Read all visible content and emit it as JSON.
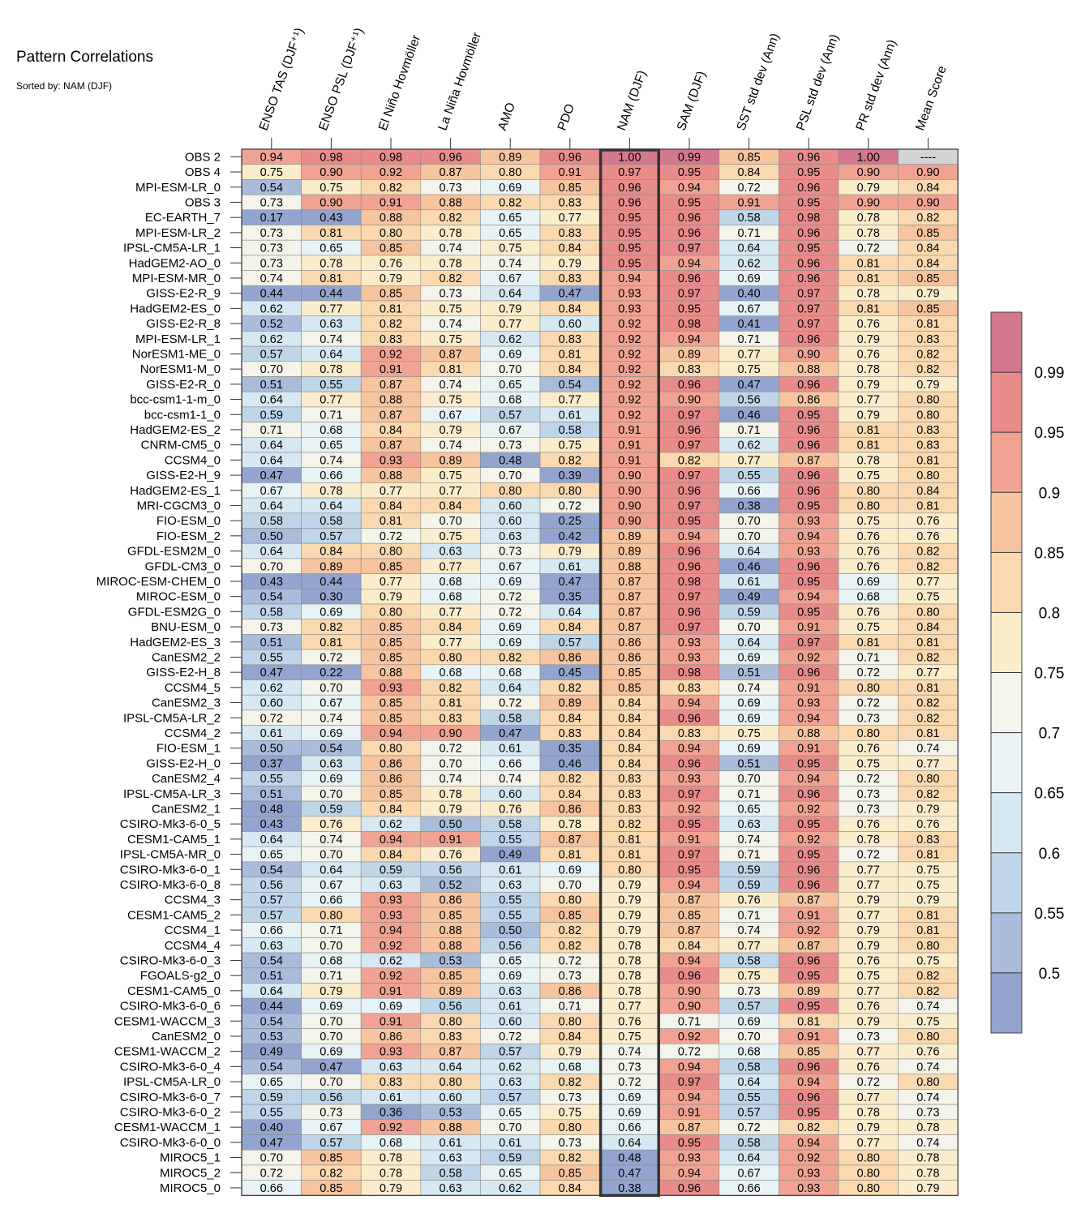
{
  "chart_data": {
    "type": "heatmap",
    "title": "Pattern Correlations",
    "subtitle": "Sorted by: NAM (DJF)",
    "highlighted_column": "NAM (DJF)",
    "columns": [
      "ENSO TAS (DJF⁺¹)",
      "ENSO PSL (DJF⁺¹)",
      "El Niño Hovmöller",
      "La Niña Hovmöller",
      "AMO",
      "PDO",
      "NAM (DJF)",
      "SAM (DJF)",
      "SST std dev (Ann)",
      "PSL std dev (Ann)",
      "PR std dev (Ann)",
      "Mean Score"
    ],
    "rows": [
      "OBS 2",
      "OBS 4",
      "MPI-ESM-LR_0",
      "OBS 3",
      "EC-EARTH_7",
      "MPI-ESM-LR_2",
      "IPSL-CM5A-LR_1",
      "HadGEM2-AO_0",
      "MPI-ESM-MR_0",
      "GISS-E2-R_9",
      "HadGEM2-ES_0",
      "GISS-E2-R_8",
      "MPI-ESM-LR_1",
      "NorESM1-ME_0",
      "NorESM1-M_0",
      "GISS-E2-R_0",
      "bcc-csm1-1-m_0",
      "bcc-csm1-1_0",
      "HadGEM2-ES_2",
      "CNRM-CM5_0",
      "CCSM4_0",
      "GISS-E2-H_9",
      "HadGEM2-ES_1",
      "MRI-CGCM3_0",
      "FIO-ESM_0",
      "FIO-ESM_2",
      "GFDL-ESM2M_0",
      "GFDL-CM3_0",
      "MIROC-ESM-CHEM_0",
      "MIROC-ESM_0",
      "GFDL-ESM2G_0",
      "BNU-ESM_0",
      "HadGEM2-ES_3",
      "CanESM2_2",
      "GISS-E2-H_8",
      "CCSM4_5",
      "CanESM2_3",
      "IPSL-CM5A-LR_2",
      "CCSM4_2",
      "FIO-ESM_1",
      "GISS-E2-H_0",
      "CanESM2_4",
      "IPSL-CM5A-LR_3",
      "CanESM2_1",
      "CSIRO-Mk3-6-0_5",
      "CESM1-CAM5_1",
      "IPSL-CM5A-MR_0",
      "CSIRO-Mk3-6-0_1",
      "CSIRO-Mk3-6-0_8",
      "CCSM4_3",
      "CESM1-CAM5_2",
      "CCSM4_1",
      "CCSM4_4",
      "CSIRO-Mk3-6-0_3",
      "FGOALS-g2_0",
      "CESM1-CAM5_0",
      "CSIRO-Mk3-6-0_6",
      "CESM1-WACCM_3",
      "CanESM2_0",
      "CESM1-WACCM_2",
      "CSIRO-Mk3-6-0_4",
      "IPSL-CM5A-LR_0",
      "CSIRO-Mk3-6-0_7",
      "CSIRO-Mk3-6-0_2",
      "CESM1-WACCM_1",
      "CSIRO-Mk3-6-0_0",
      "MIROC5_1",
      "MIROC5_2",
      "MIROC5_0"
    ],
    "values": [
      [
        0.94,
        0.98,
        0.98,
        0.96,
        0.89,
        0.96,
        1.0,
        0.99,
        0.85,
        0.96,
        1.0,
        null
      ],
      [
        0.75,
        0.9,
        0.92,
        0.87,
        0.8,
        0.91,
        0.97,
        0.95,
        0.84,
        0.95,
        0.9,
        0.9
      ],
      [
        0.54,
        0.75,
        0.82,
        0.73,
        0.69,
        0.85,
        0.96,
        0.94,
        0.72,
        0.96,
        0.79,
        0.84
      ],
      [
        0.73,
        0.9,
        0.91,
        0.88,
        0.82,
        0.83,
        0.96,
        0.95,
        0.91,
        0.95,
        0.9,
        0.9
      ],
      [
        0.17,
        0.43,
        0.88,
        0.82,
        0.65,
        0.77,
        0.95,
        0.96,
        0.58,
        0.98,
        0.78,
        0.82
      ],
      [
        0.73,
        0.81,
        0.8,
        0.78,
        0.65,
        0.83,
        0.95,
        0.96,
        0.71,
        0.96,
        0.78,
        0.85
      ],
      [
        0.73,
        0.65,
        0.85,
        0.74,
        0.75,
        0.84,
        0.95,
        0.97,
        0.64,
        0.95,
        0.72,
        0.84
      ],
      [
        0.73,
        0.78,
        0.76,
        0.78,
        0.74,
        0.79,
        0.95,
        0.94,
        0.62,
        0.96,
        0.81,
        0.84
      ],
      [
        0.74,
        0.81,
        0.79,
        0.82,
        0.67,
        0.83,
        0.94,
        0.96,
        0.69,
        0.96,
        0.81,
        0.85
      ],
      [
        0.44,
        0.44,
        0.85,
        0.73,
        0.64,
        0.47,
        0.93,
        0.97,
        0.4,
        0.97,
        0.78,
        0.79
      ],
      [
        0.62,
        0.77,
        0.81,
        0.75,
        0.79,
        0.84,
        0.93,
        0.95,
        0.67,
        0.97,
        0.81,
        0.85
      ],
      [
        0.52,
        0.63,
        0.82,
        0.74,
        0.77,
        0.6,
        0.92,
        0.98,
        0.41,
        0.97,
        0.76,
        0.81
      ],
      [
        0.62,
        0.74,
        0.83,
        0.75,
        0.62,
        0.83,
        0.92,
        0.94,
        0.71,
        0.96,
        0.79,
        0.83
      ],
      [
        0.57,
        0.64,
        0.92,
        0.87,
        0.69,
        0.81,
        0.92,
        0.89,
        0.77,
        0.9,
        0.76,
        0.82
      ],
      [
        0.7,
        0.78,
        0.91,
        0.81,
        0.7,
        0.84,
        0.92,
        0.83,
        0.75,
        0.88,
        0.78,
        0.82
      ],
      [
        0.51,
        0.55,
        0.87,
        0.74,
        0.65,
        0.54,
        0.92,
        0.96,
        0.47,
        0.96,
        0.79,
        0.79
      ],
      [
        0.64,
        0.77,
        0.88,
        0.75,
        0.68,
        0.77,
        0.92,
        0.9,
        0.56,
        0.86,
        0.77,
        0.8
      ],
      [
        0.59,
        0.71,
        0.87,
        0.67,
        0.57,
        0.61,
        0.92,
        0.97,
        0.46,
        0.95,
        0.79,
        0.8
      ],
      [
        0.71,
        0.68,
        0.84,
        0.79,
        0.67,
        0.58,
        0.91,
        0.96,
        0.71,
        0.96,
        0.81,
        0.83
      ],
      [
        0.64,
        0.65,
        0.87,
        0.74,
        0.73,
        0.75,
        0.91,
        0.97,
        0.62,
        0.96,
        0.81,
        0.83
      ],
      [
        0.64,
        0.74,
        0.93,
        0.89,
        0.48,
        0.82,
        0.91,
        0.82,
        0.77,
        0.87,
        0.78,
        0.81
      ],
      [
        0.47,
        0.66,
        0.88,
        0.75,
        0.7,
        0.39,
        0.9,
        0.97,
        0.55,
        0.96,
        0.75,
        0.8
      ],
      [
        0.67,
        0.78,
        0.77,
        0.77,
        0.8,
        0.8,
        0.9,
        0.96,
        0.66,
        0.96,
        0.8,
        0.84
      ],
      [
        0.64,
        0.64,
        0.84,
        0.84,
        0.6,
        0.72,
        0.9,
        0.97,
        0.38,
        0.95,
        0.8,
        0.81
      ],
      [
        0.58,
        0.58,
        0.81,
        0.7,
        0.6,
        0.25,
        0.9,
        0.95,
        0.7,
        0.93,
        0.75,
        0.76
      ],
      [
        0.5,
        0.57,
        0.72,
        0.75,
        0.63,
        0.42,
        0.89,
        0.94,
        0.7,
        0.94,
        0.76,
        0.76
      ],
      [
        0.64,
        0.84,
        0.8,
        0.63,
        0.73,
        0.79,
        0.89,
        0.96,
        0.64,
        0.93,
        0.76,
        0.82
      ],
      [
        0.7,
        0.89,
        0.85,
        0.77,
        0.67,
        0.61,
        0.88,
        0.96,
        0.46,
        0.96,
        0.76,
        0.82
      ],
      [
        0.43,
        0.44,
        0.77,
        0.68,
        0.69,
        0.47,
        0.87,
        0.98,
        0.61,
        0.95,
        0.69,
        0.77
      ],
      [
        0.54,
        0.3,
        0.79,
        0.68,
        0.72,
        0.35,
        0.87,
        0.97,
        0.49,
        0.94,
        0.68,
        0.75
      ],
      [
        0.58,
        0.69,
        0.8,
        0.77,
        0.72,
        0.64,
        0.87,
        0.96,
        0.59,
        0.95,
        0.76,
        0.8
      ],
      [
        0.73,
        0.82,
        0.85,
        0.84,
        0.69,
        0.84,
        0.87,
        0.97,
        0.7,
        0.91,
        0.75,
        0.84
      ],
      [
        0.51,
        0.81,
        0.85,
        0.77,
        0.69,
        0.57,
        0.86,
        0.93,
        0.64,
        0.97,
        0.81,
        0.81
      ],
      [
        0.55,
        0.72,
        0.85,
        0.8,
        0.82,
        0.86,
        0.86,
        0.93,
        0.69,
        0.92,
        0.71,
        0.82
      ],
      [
        0.47,
        0.22,
        0.88,
        0.68,
        0.68,
        0.45,
        0.85,
        0.98,
        0.51,
        0.96,
        0.72,
        0.77
      ],
      [
        0.62,
        0.7,
        0.93,
        0.82,
        0.64,
        0.82,
        0.85,
        0.83,
        0.74,
        0.91,
        0.8,
        0.81
      ],
      [
        0.6,
        0.67,
        0.85,
        0.81,
        0.72,
        0.89,
        0.84,
        0.94,
        0.69,
        0.93,
        0.72,
        0.82
      ],
      [
        0.72,
        0.74,
        0.85,
        0.83,
        0.58,
        0.84,
        0.84,
        0.96,
        0.69,
        0.94,
        0.73,
        0.82
      ],
      [
        0.61,
        0.69,
        0.94,
        0.9,
        0.47,
        0.83,
        0.84,
        0.83,
        0.75,
        0.88,
        0.8,
        0.81
      ],
      [
        0.5,
        0.54,
        0.8,
        0.72,
        0.61,
        0.35,
        0.84,
        0.94,
        0.69,
        0.91,
        0.76,
        0.74
      ],
      [
        0.37,
        0.63,
        0.86,
        0.7,
        0.66,
        0.46,
        0.84,
        0.96,
        0.51,
        0.95,
        0.75,
        0.77
      ],
      [
        0.55,
        0.69,
        0.86,
        0.74,
        0.74,
        0.82,
        0.83,
        0.93,
        0.7,
        0.94,
        0.72,
        0.8
      ],
      [
        0.51,
        0.7,
        0.85,
        0.78,
        0.6,
        0.84,
        0.83,
        0.97,
        0.71,
        0.96,
        0.73,
        0.82
      ],
      [
        0.48,
        0.59,
        0.84,
        0.79,
        0.76,
        0.86,
        0.83,
        0.92,
        0.65,
        0.92,
        0.73,
        0.79
      ],
      [
        0.43,
        0.76,
        0.62,
        0.5,
        0.58,
        0.78,
        0.82,
        0.95,
        0.63,
        0.95,
        0.76,
        0.76
      ],
      [
        0.64,
        0.74,
        0.94,
        0.91,
        0.55,
        0.87,
        0.81,
        0.91,
        0.74,
        0.92,
        0.78,
        0.83
      ],
      [
        0.65,
        0.7,
        0.84,
        0.76,
        0.49,
        0.81,
        0.81,
        0.97,
        0.71,
        0.95,
        0.72,
        0.81
      ],
      [
        0.54,
        0.64,
        0.59,
        0.56,
        0.61,
        0.69,
        0.8,
        0.95,
        0.59,
        0.96,
        0.77,
        0.75
      ],
      [
        0.56,
        0.67,
        0.63,
        0.52,
        0.63,
        0.7,
        0.79,
        0.94,
        0.59,
        0.96,
        0.77,
        0.75
      ],
      [
        0.57,
        0.66,
        0.93,
        0.86,
        0.55,
        0.8,
        0.79,
        0.87,
        0.76,
        0.87,
        0.79,
        0.79
      ],
      [
        0.57,
        0.8,
        0.93,
        0.85,
        0.55,
        0.85,
        0.79,
        0.85,
        0.71,
        0.91,
        0.77,
        0.81
      ],
      [
        0.66,
        0.71,
        0.94,
        0.88,
        0.5,
        0.82,
        0.79,
        0.87,
        0.74,
        0.92,
        0.79,
        0.81
      ],
      [
        0.63,
        0.7,
        0.92,
        0.88,
        0.56,
        0.82,
        0.78,
        0.84,
        0.77,
        0.87,
        0.79,
        0.8
      ],
      [
        0.54,
        0.68,
        0.62,
        0.53,
        0.65,
        0.72,
        0.78,
        0.94,
        0.58,
        0.96,
        0.76,
        0.75
      ],
      [
        0.51,
        0.71,
        0.92,
        0.85,
        0.69,
        0.73,
        0.78,
        0.96,
        0.75,
        0.95,
        0.75,
        0.82
      ],
      [
        0.64,
        0.79,
        0.91,
        0.89,
        0.63,
        0.86,
        0.78,
        0.9,
        0.73,
        0.89,
        0.77,
        0.82
      ],
      [
        0.44,
        0.69,
        0.69,
        0.56,
        0.61,
        0.71,
        0.77,
        0.9,
        0.57,
        0.95,
        0.76,
        0.74
      ],
      [
        0.54,
        0.7,
        0.91,
        0.8,
        0.6,
        0.8,
        0.76,
        0.71,
        0.69,
        0.81,
        0.79,
        0.75
      ],
      [
        0.53,
        0.7,
        0.86,
        0.83,
        0.72,
        0.84,
        0.75,
        0.92,
        0.7,
        0.91,
        0.73,
        0.8
      ],
      [
        0.49,
        0.69,
        0.93,
        0.87,
        0.57,
        0.79,
        0.74,
        0.72,
        0.68,
        0.85,
        0.77,
        0.76
      ],
      [
        0.54,
        0.47,
        0.63,
        0.64,
        0.62,
        0.68,
        0.73,
        0.94,
        0.58,
        0.96,
        0.76,
        0.74
      ],
      [
        0.65,
        0.7,
        0.83,
        0.8,
        0.63,
        0.82,
        0.72,
        0.97,
        0.64,
        0.94,
        0.72,
        0.8
      ],
      [
        0.59,
        0.56,
        0.61,
        0.6,
        0.57,
        0.73,
        0.69,
        0.94,
        0.55,
        0.96,
        0.77,
        0.74
      ],
      [
        0.55,
        0.73,
        0.36,
        0.53,
        0.65,
        0.75,
        0.69,
        0.91,
        0.57,
        0.95,
        0.78,
        0.73
      ],
      [
        0.4,
        0.67,
        0.92,
        0.88,
        0.7,
        0.8,
        0.66,
        0.87,
        0.72,
        0.82,
        0.79,
        0.78
      ],
      [
        0.47,
        0.57,
        0.68,
        0.61,
        0.61,
        0.73,
        0.64,
        0.95,
        0.58,
        0.94,
        0.77,
        0.74
      ],
      [
        0.7,
        0.85,
        0.78,
        0.63,
        0.59,
        0.82,
        0.48,
        0.93,
        0.64,
        0.92,
        0.8,
        0.78
      ],
      [
        0.72,
        0.82,
        0.78,
        0.58,
        0.65,
        0.85,
        0.47,
        0.94,
        0.67,
        0.93,
        0.8,
        0.78
      ],
      [
        0.66,
        0.85,
        0.79,
        0.63,
        0.62,
        0.84,
        0.38,
        0.96,
        0.66,
        0.93,
        0.8,
        0.79
      ]
    ],
    "missing_label": "----",
    "colorbar": {
      "levels": [
        0.5,
        0.55,
        0.6,
        0.65,
        0.7,
        0.75,
        0.8,
        0.85,
        0.9,
        0.95,
        0.99
      ],
      "tick_labels": [
        "0.5",
        "0.55",
        "0.6",
        "0.65",
        "0.7",
        "0.75",
        "0.8",
        "0.85",
        "0.9",
        "0.95",
        "0.99"
      ],
      "colors": [
        "#93a5ce",
        "#a9bcda",
        "#bfd5e8",
        "#d6e8f1",
        "#e8f3f6",
        "#f4f4ea",
        "#fbedcc",
        "#fad9b0",
        "#f7c4a0",
        "#f1a393",
        "#e88c8b",
        "#d4788d"
      ],
      "missing_color": "#d4d4d4"
    },
    "xlabel": "",
    "ylabel": ""
  }
}
